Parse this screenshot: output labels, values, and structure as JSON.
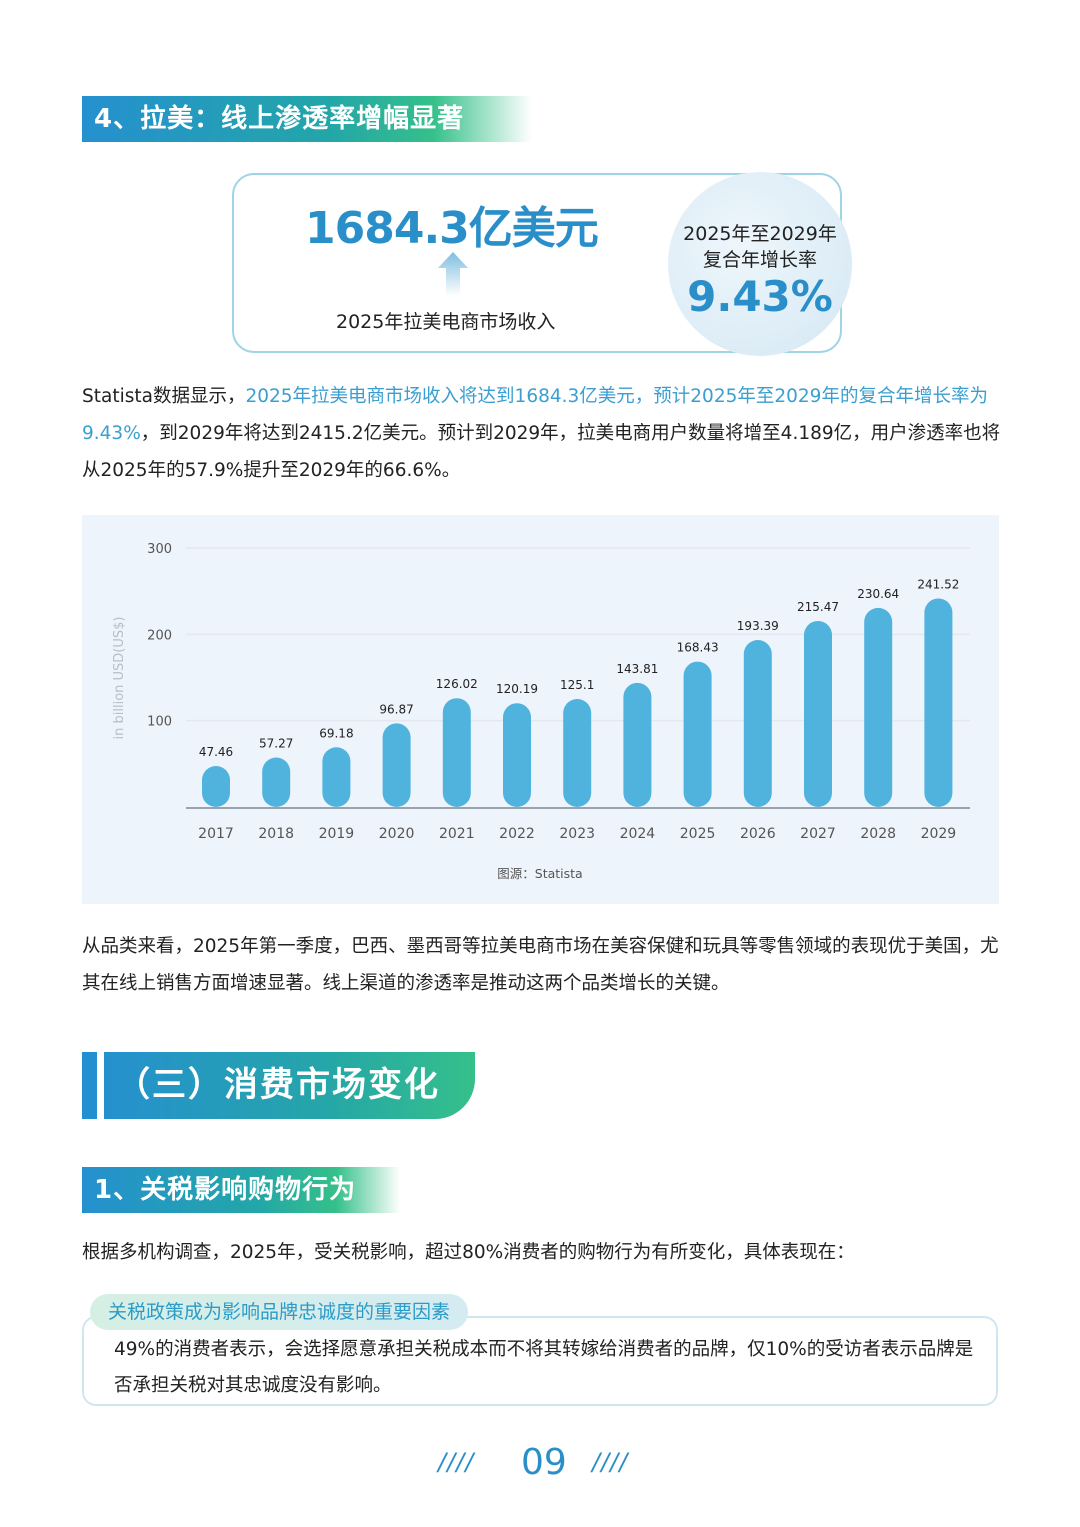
{
  "section4": {
    "heading": "4、拉美：线上渗透率增幅显著"
  },
  "stat_card": {
    "revenue_value": "1684.3亿美元",
    "revenue_caption": "2025年拉美电商市场收入",
    "cagr_line1": "2025年至2029年",
    "cagr_line2": "复合年增长率",
    "cagr_value": "9.43%"
  },
  "paragraph1": {
    "prefix": "Statista数据显示，",
    "highlight": "2025年拉美电商市场收入将达到1684.3亿美元，预计2025年至2029年的复合年增长率为9.43%",
    "suffix": "，到2029年将达到2415.2亿美元。预计到2029年，拉美电商用户数量将增至4.189亿，用户渗透率也将从2025年的57.9%提升至2029年的66.6%。"
  },
  "chart_data": {
    "type": "bar",
    "title": "",
    "categories": [
      "2017",
      "2018",
      "2019",
      "2020",
      "2021",
      "2022",
      "2023",
      "2024",
      "2025",
      "2026",
      "2027",
      "2028",
      "2029"
    ],
    "values": [
      47.46,
      57.27,
      69.18,
      96.87,
      126.02,
      120.19,
      125.1,
      143.81,
      168.43,
      193.39,
      215.47,
      230.64,
      241.52
    ],
    "value_labels": [
      "47.46",
      "57.27",
      "69.18",
      "96.87",
      "126.02",
      "120.19",
      "125.1",
      "143.81",
      "168.43",
      "193.39",
      "215.47",
      "230.64",
      "241.52"
    ],
    "xlabel": "",
    "ylabel": "in billion USD(US$)",
    "yticks": [
      "100",
      "200",
      "300"
    ],
    "ylim": [
      0,
      300
    ],
    "grid": true,
    "legend": null,
    "bar_color": "#4fb3de",
    "source": "图源：Statista"
  },
  "paragraph2": {
    "text": "从品类来看，2025年第一季度，巴西、墨西哥等拉美电商市场在美容保健和玩具等零售领域的表现优于美国，尤其在线上销售方面增速显著。线上渠道的渗透率是推动这两个品类增长的关键。"
  },
  "section3": {
    "heading": "（三）消费市场变化"
  },
  "subsection1": {
    "heading": "1、关税影响购物行为"
  },
  "paragraph3": {
    "text": "根据多机构调查，2025年，受关税影响，超过80%消费者的购物行为有所变化，具体表现在："
  },
  "callout": {
    "tag": "关税政策成为影响品牌忠诚度的重要因素",
    "text": "49%的消费者表示，会选择愿意承担关税成本而不将其转嫁给消费者的品牌，仅10%的受访者表示品牌是否承担关税对其忠诚度没有影响。"
  },
  "footer": {
    "page_number": "09",
    "decoration": "////"
  }
}
